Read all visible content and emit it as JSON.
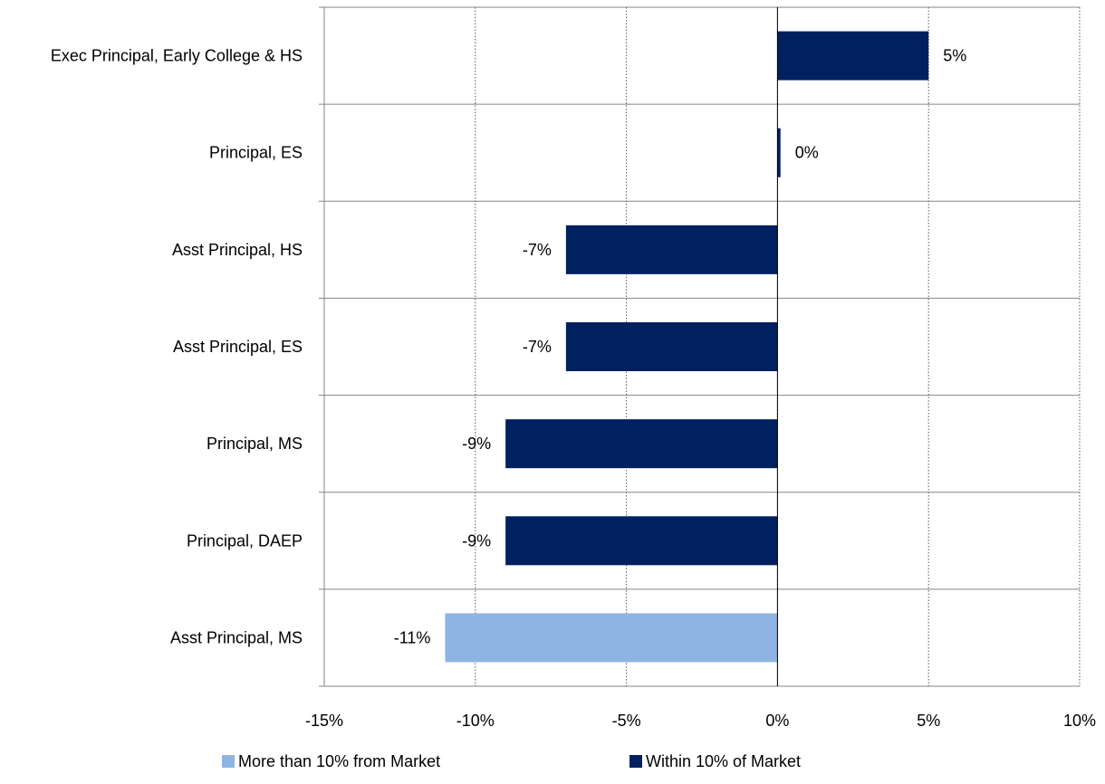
{
  "chart_data": {
    "type": "bar",
    "orientation": "horizontal",
    "categories": [
      "Exec Principal, Early College & HS",
      "Principal, ES",
      "Asst Principal, HS",
      "Asst Principal, ES",
      "Principal, MS",
      "Principal, DAEP",
      "Asst Principal, MS"
    ],
    "series": [
      {
        "name": "More than 10% from Market",
        "color": "#8eb4e3",
        "values": [
          null,
          null,
          null,
          null,
          null,
          null,
          -0.11
        ]
      },
      {
        "name": "Within 10% of Market",
        "color": "#002060",
        "values": [
          0.05,
          0.001,
          -0.07,
          -0.07,
          -0.09,
          -0.09,
          null
        ]
      }
    ],
    "data_labels": [
      "5%",
      "0%",
      "-7%",
      "-7%",
      "-9%",
      "-9%",
      "-11%"
    ],
    "xlim": [
      -0.15,
      0.1
    ],
    "x_ticks": [
      -0.15,
      -0.1,
      -0.05,
      0,
      0.05,
      0.1
    ],
    "x_tick_labels": [
      "-15%",
      "-10%",
      "-5%",
      "0%",
      "5%",
      "10%"
    ],
    "title": "",
    "xlabel": "",
    "ylabel": "",
    "grid": true,
    "legend_position": "bottom"
  }
}
